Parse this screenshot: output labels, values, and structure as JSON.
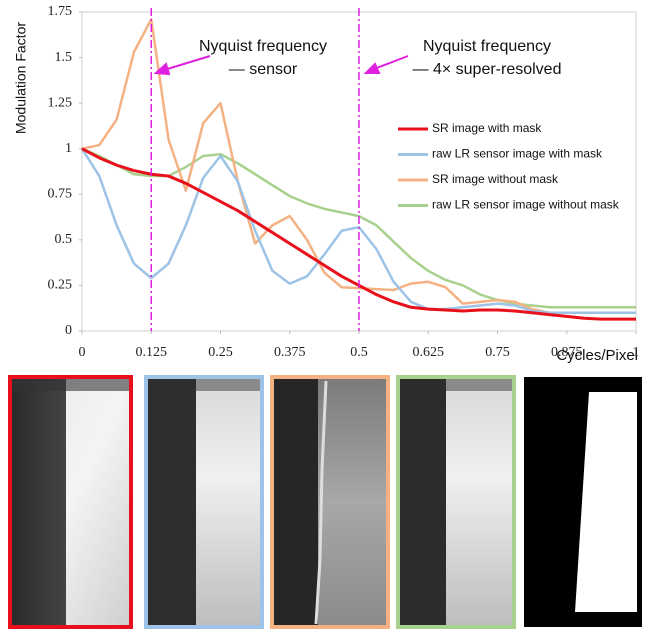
{
  "chart_data": {
    "type": "line",
    "y_label": "Modulation Factor",
    "x_label": "Cycles/Pixel",
    "x": [
      0,
      0.03125,
      0.0625,
      0.09375,
      0.125,
      0.15625,
      0.1875,
      0.21875,
      0.25,
      0.28125,
      0.3125,
      0.34375,
      0.375,
      0.40625,
      0.4375,
      0.46875,
      0.5,
      0.53125,
      0.5625,
      0.59375,
      0.625,
      0.65625,
      0.6875,
      0.71875,
      0.75,
      0.78125,
      0.8125,
      0.84375,
      0.875,
      0.90625,
      0.9375,
      0.96875,
      1
    ],
    "series": [
      {
        "name": "SR image with mask",
        "color": "#e8101a",
        "values": [
          1,
          0.95,
          0.91,
          0.88,
          0.86,
          0.85,
          0.81,
          0.76,
          0.71,
          0.66,
          0.6,
          0.54,
          0.48,
          0.42,
          0.36,
          0.3,
          0.25,
          0.2,
          0.16,
          0.13,
          0.12,
          0.115,
          0.11,
          0.115,
          0.115,
          0.11,
          0.1,
          0.09,
          0.08,
          0.07,
          0.065,
          0.065,
          0.065
        ]
      },
      {
        "name": "raw LR sensor image with mask",
        "color": "#9dc3e6",
        "values": [
          1,
          0.85,
          0.58,
          0.37,
          0.29,
          0.37,
          0.58,
          0.84,
          0.96,
          0.82,
          0.55,
          0.33,
          0.26,
          0.3,
          0.42,
          0.55,
          0.57,
          0.45,
          0.27,
          0.16,
          0.12,
          0.12,
          0.13,
          0.14,
          0.15,
          0.14,
          0.11,
          0.1,
          0.1,
          0.1,
          0.1,
          0.1,
          0.1
        ]
      },
      {
        "name": "SR image without mask",
        "color": "#f4b183",
        "values": [
          1,
          1.02,
          1.16,
          1.53,
          1.71,
          1.05,
          0.77,
          1.14,
          1.25,
          0.82,
          0.48,
          0.58,
          0.63,
          0.5,
          0.32,
          0.24,
          0.235,
          0.23,
          0.225,
          0.26,
          0.27,
          0.24,
          0.15,
          0.16,
          0.17,
          0.16,
          0.12,
          0.1,
          0.1,
          0.1,
          0.1,
          0.1,
          0.1
        ]
      },
      {
        "name": "raw LR sensor image without mask",
        "color": "#a9d18e",
        "values": [
          1,
          0.96,
          0.91,
          0.86,
          0.85,
          0.85,
          0.9,
          0.96,
          0.97,
          0.92,
          0.86,
          0.8,
          0.74,
          0.7,
          0.67,
          0.65,
          0.63,
          0.58,
          0.49,
          0.4,
          0.33,
          0.28,
          0.25,
          0.2,
          0.17,
          0.15,
          0.14,
          0.13,
          0.13,
          0.13,
          0.13,
          0.13,
          0.13
        ]
      }
    ],
    "xlim": [
      0,
      1
    ],
    "xticks": [
      0,
      0.125,
      0.25,
      0.375,
      0.5,
      0.625,
      0.75,
      0.875,
      1
    ],
    "ylim": [
      0,
      1.75
    ],
    "yticks": [
      0,
      0.25,
      0.5,
      0.75,
      1,
      1.25,
      1.5,
      1.75
    ],
    "vlines": [
      0.125,
      0.5
    ],
    "vline_color": "#e020e0",
    "annotations": [
      "Nyquist frequency",
      "— sensor",
      "Nyquist frequency",
      "— 4× super-resolved"
    ],
    "legend": "right",
    "grid": false
  }
}
